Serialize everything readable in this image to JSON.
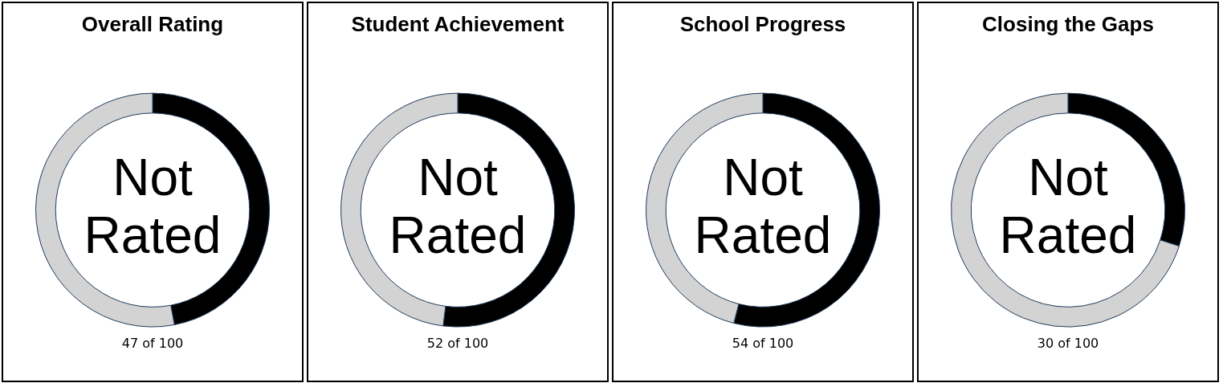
{
  "chart_data": [
    {
      "type": "donut",
      "title": "Overall Rating",
      "categories": [
        null,
        null
      ],
      "values": [
        47,
        53
      ],
      "colors": [
        "#000000",
        "#d3d3d3"
      ],
      "annotations": [
        "Not Rated",
        "47 of 100"
      ]
    },
    {
      "type": "donut",
      "title": "Student Achievement",
      "categories": [
        null,
        null
      ],
      "values": [
        52,
        48
      ],
      "colors": [
        "#000000",
        "#d3d3d3"
      ],
      "annotations": [
        "Not Rated",
        "52 of 100"
      ]
    },
    {
      "type": "donut",
      "title": "School Progress",
      "categories": [
        null,
        null
      ],
      "values": [
        54,
        46
      ],
      "colors": [
        "#000000",
        "#d3d3d3"
      ],
      "annotations": [
        "Not Rated",
        "54 of 100"
      ]
    },
    {
      "type": "donut",
      "title": "Closing the Gaps",
      "categories": [
        null,
        null
      ],
      "values": [
        30,
        70
      ],
      "colors": [
        "#000000",
        "#d3d3d3"
      ],
      "annotations": [
        "Not Rated",
        "30 of 100"
      ]
    }
  ]
}
